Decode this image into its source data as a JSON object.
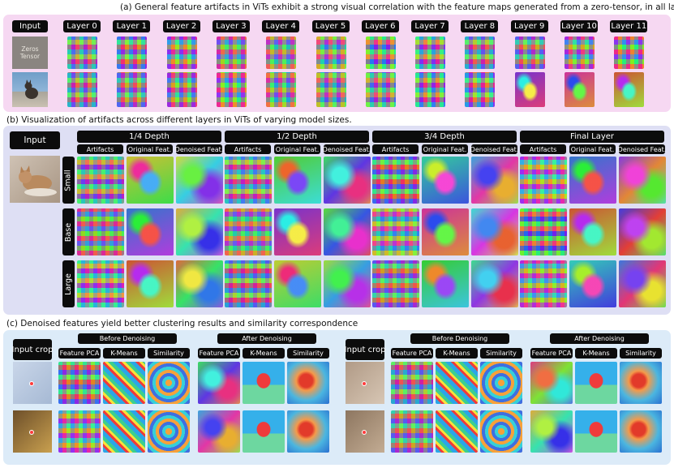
{
  "captions": {
    "a": "(a) General feature artifacts in ViTs exhibit a strong visual correlation with the feature maps generated from a zero-tensor, in all layers.",
    "b": "(b) Visualization of artifacts across different layers in ViTs of varying model sizes.",
    "c": "(c) Denoised features yield better clustering results and similarity correspondence"
  },
  "panel_a": {
    "input_label": "Input",
    "zeros_line1": "Zeros",
    "zeros_line2": "Tensor",
    "layers": [
      "Layer 0",
      "Layer 1",
      "Layer 2",
      "Layer 3",
      "Layer 4",
      "Layer 5",
      "Layer 6",
      "Layer 7",
      "Layer 8",
      "Layer 9",
      "Layer 10",
      "Layer 11"
    ]
  },
  "panel_b": {
    "input_label": "Input",
    "depths": [
      "1/4 Depth",
      "1/2 Depth",
      "3/4 Depth",
      "Final Layer"
    ],
    "columns": [
      "Artifacts",
      "Original Feat.",
      "Denoised Feat."
    ],
    "sizes": [
      "Small",
      "Base",
      "Large"
    ]
  },
  "panel_c": {
    "input_label": "Input crop",
    "groups": [
      "Before Denoising",
      "After Denoising"
    ],
    "columns": [
      "Feature PCA",
      "K-Means",
      "Similarity"
    ]
  },
  "colors": {
    "panel_a_bg": "#f6d8f2",
    "panel_b_bg": "#dedff4",
    "panel_c_bg": "#dcebf8",
    "label_bg": "#0c0c0c"
  }
}
